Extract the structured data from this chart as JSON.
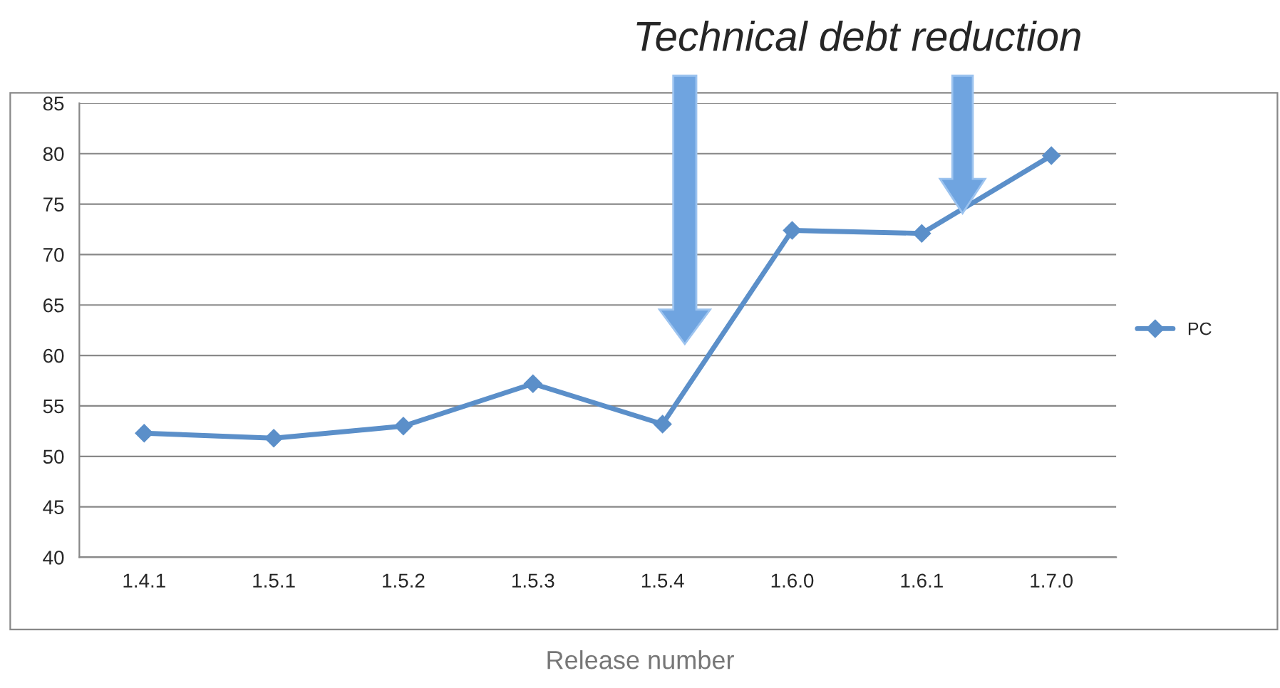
{
  "chart_data": {
    "type": "line",
    "title": "Technical debt reduction",
    "xlabel": "Release number",
    "categories": [
      "1.4.1",
      "1.5.1",
      "1.5.2",
      "1.5.3",
      "1.5.4",
      "1.6.0",
      "1.6.1",
      "1.7.0"
    ],
    "series": [
      {
        "name": "PC",
        "color": "#5b8fc9",
        "values": [
          52.3,
          51.8,
          53.0,
          57.2,
          53.2,
          72.4,
          72.1,
          79.8
        ]
      }
    ],
    "ylim": [
      40,
      85
    ],
    "yticks": [
      40,
      45,
      50,
      55,
      60,
      65,
      70,
      75,
      80,
      85
    ],
    "grid": "y",
    "legend": "right",
    "marker": "diamond",
    "line_style": "solid"
  }
}
